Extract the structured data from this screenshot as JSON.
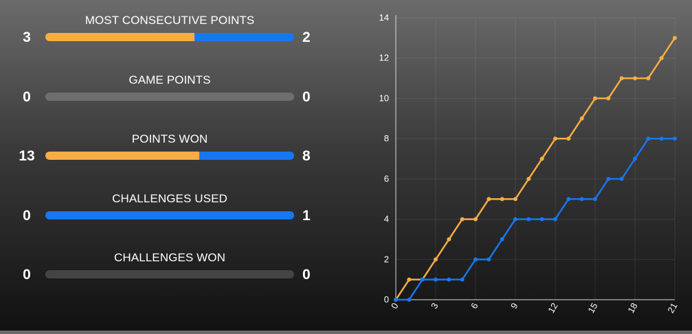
{
  "colors": {
    "home": "#f8ad43",
    "away": "#1776f2",
    "neutral_light": "#6e6e6e",
    "neutral_dark": "#444444"
  },
  "stats": [
    {
      "title": "MOST CONSECUTIVE POINTS",
      "left": "3",
      "right": "2",
      "left_share": 0.6,
      "right_share": 0.4,
      "bar": "split"
    },
    {
      "title": "GAME POINTS",
      "left": "0",
      "right": "0",
      "left_share": 0,
      "right_share": 0,
      "bar": "empty-light"
    },
    {
      "title": "POINTS WON",
      "left": "13",
      "right": "8",
      "left_share": 0.619,
      "right_share": 0.381,
      "bar": "split"
    },
    {
      "title": "CHALLENGES USED",
      "left": "0",
      "right": "1",
      "left_share": 0,
      "right_share": 1,
      "bar": "split"
    },
    {
      "title": "CHALLENGES WON",
      "left": "0",
      "right": "0",
      "left_share": 0,
      "right_share": 0,
      "bar": "empty-dark"
    }
  ],
  "chart_data": {
    "type": "line",
    "x": [
      0,
      1,
      2,
      3,
      4,
      5,
      6,
      7,
      8,
      9,
      10,
      11,
      12,
      13,
      14,
      15,
      16,
      17,
      18,
      19,
      20,
      21
    ],
    "xticks": [
      "0",
      "3",
      "6",
      "9",
      "12",
      "15",
      "18",
      "21"
    ],
    "xtick_values": [
      0,
      3,
      6,
      9,
      12,
      15,
      18,
      21
    ],
    "yticks": [
      "0",
      "2",
      "4",
      "6",
      "8",
      "10",
      "12",
      "14"
    ],
    "ytick_values": [
      0,
      2,
      4,
      6,
      8,
      10,
      12,
      14
    ],
    "xlim": [
      0,
      21
    ],
    "ylim": [
      0,
      14
    ],
    "grid": true,
    "series": [
      {
        "color": "#f8ad43",
        "values": [
          0,
          1,
          1,
          2,
          3,
          4,
          4,
          5,
          5,
          5,
          6,
          7,
          8,
          8,
          9,
          10,
          10,
          11,
          11,
          11,
          12,
          13
        ]
      },
      {
        "color": "#1776f2",
        "values": [
          0,
          0,
          1,
          1,
          1,
          1,
          2,
          2,
          3,
          4,
          4,
          4,
          4,
          5,
          5,
          5,
          6,
          6,
          7,
          8,
          8,
          8
        ]
      }
    ]
  }
}
